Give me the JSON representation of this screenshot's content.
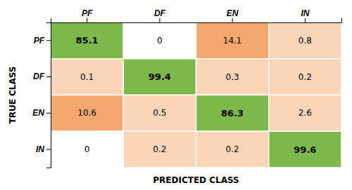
{
  "chart_data": {
    "type": "heatmap",
    "xlabel": "PREDICTED CLASS",
    "ylabel": "TRUE CLASS",
    "x_categories": [
      "PF",
      "DF",
      "EN",
      "IN"
    ],
    "y_categories": [
      "PF",
      "DF",
      "EN",
      "IN"
    ],
    "values": [
      [
        85.1,
        0,
        14.1,
        0.8
      ],
      [
        0.1,
        99.4,
        0.3,
        0.2
      ],
      [
        10.6,
        0.5,
        86.3,
        2.6
      ],
      [
        0,
        0.2,
        0.2,
        99.6
      ]
    ],
    "colors": [
      [
        "#7db84a",
        "#ffffff",
        "#f4a870",
        "#fad5b8"
      ],
      [
        "#fad5b8",
        "#7db84a",
        "#fad5b8",
        "#fad5b8"
      ],
      [
        "#f4a870",
        "#fad5b8",
        "#7db84a",
        "#fad5b8"
      ],
      [
        "#ffffff",
        "#fad5b8",
        "#fad5b8",
        "#7db84a"
      ]
    ],
    "data_labels": true
  }
}
